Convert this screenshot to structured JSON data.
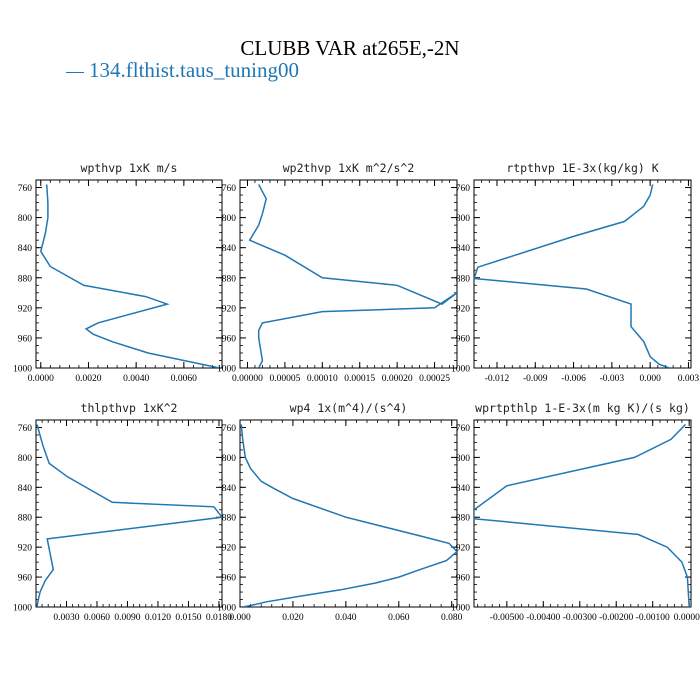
{
  "figure_title": "CLUBB VAR at265E,-2N",
  "legend_label": "134.flthist.taus_tuning00",
  "colors": {
    "series": "#1f77b4",
    "axes": "#000000"
  },
  "chart_data": [
    {
      "type": "line",
      "title": "wpthvp  1xK m/s",
      "xlim": [
        -0.0002,
        0.0076
      ],
      "ylim": [
        750,
        1000
      ],
      "x_ticks": [
        0.0,
        0.002,
        0.004,
        0.006
      ],
      "x_tick_labels": [
        "0.0000",
        "0.0020",
        "0.0040",
        "0.0060"
      ],
      "y_ticks": [
        760,
        800,
        840,
        880,
        920,
        960,
        1000
      ],
      "y_tick_labels": [
        "760",
        "800",
        "840",
        "880",
        "920",
        "960",
        "1000"
      ],
      "series": [
        {
          "x": [
            0.00025,
            0.0003,
            0.0003,
            0.0002,
            0.0,
            0.0004,
            0.0018,
            0.0044,
            0.0053,
            0.0024,
            0.0019,
            0.0022,
            0.003,
            0.0045,
            0.0075
          ],
          "y": [
            756,
            780,
            800,
            820,
            845,
            865,
            890,
            905,
            915,
            940,
            948,
            955,
            965,
            980,
            1000
          ]
        }
      ]
    },
    {
      "type": "line",
      "title": "wp2thvp  1xK m^2/s^2",
      "xlim": [
        -1e-05,
        0.00028
      ],
      "ylim": [
        750,
        1000
      ],
      "x_ticks": [
        0.0,
        5e-05,
        0.0001,
        0.00015,
        0.0002,
        0.00025
      ],
      "x_tick_labels": [
        "0.00000",
        "0.00005",
        "0.00010",
        "0.00015",
        "0.00020",
        "0.00025"
      ],
      "y_ticks": [
        760,
        800,
        840,
        880,
        920,
        960,
        1000
      ],
      "y_tick_labels": [
        "760",
        "800",
        "840",
        "880",
        "920",
        "960",
        "1000"
      ],
      "series": [
        {
          "x": [
            1.5e-05,
            2.5e-05,
            2e-05,
            1.5e-05,
            3e-06,
            5e-05,
            0.0001,
            0.0002,
            0.00026,
            0.00028,
            0.00025,
            0.0001,
            2e-05,
            1.5e-05,
            1.5e-05,
            2e-05,
            1.5e-05
          ],
          "y": [
            756,
            775,
            795,
            810,
            830,
            850,
            880,
            890,
            915,
            900,
            920,
            925,
            940,
            950,
            960,
            990,
            1000
          ]
        }
      ]
    },
    {
      "type": "line",
      "title": "rtpthvp  1E-3x(kg/kg) K",
      "xlim": [
        -0.0138,
        0.0032
      ],
      "ylim": [
        750,
        1000
      ],
      "x_ticks": [
        -0.012,
        -0.009,
        -0.006,
        -0.003,
        0.0,
        0.003
      ],
      "x_tick_labels": [
        "-0.012",
        "-0.009",
        "-0.006",
        "-0.003",
        "0.000",
        "0.003"
      ],
      "y_ticks": [
        760,
        800,
        840,
        880,
        920,
        960,
        1000
      ],
      "y_tick_labels": [
        "760",
        "800",
        "840",
        "880",
        "920",
        "960",
        "1000"
      ],
      "series": [
        {
          "x": [
            0.0002,
            0.0,
            -0.0005,
            -0.002,
            -0.006,
            -0.0135,
            -0.0138,
            -0.005,
            -0.0015,
            -0.0015,
            -0.0015,
            -0.0005,
            0.0,
            0.0007,
            0.0015
          ],
          "y": [
            756,
            770,
            785,
            805,
            825,
            866,
            881,
            895,
            915,
            930,
            945,
            965,
            985,
            995,
            1000
          ]
        }
      ]
    },
    {
      "type": "line",
      "title": "thlpthvp  1xK^2",
      "xlim": [
        0.0,
        0.0183
      ],
      "ylim": [
        750,
        1000
      ],
      "x_ticks": [
        0.003,
        0.006,
        0.009,
        0.012,
        0.015,
        0.018
      ],
      "x_tick_labels": [
        "0.0030",
        "0.0060",
        "0.0090",
        "0.0120",
        "0.0150",
        "0.0180"
      ],
      "y_ticks": [
        760,
        800,
        840,
        880,
        920,
        960,
        1000
      ],
      "y_tick_labels": [
        "760",
        "800",
        "840",
        "880",
        "920",
        "960",
        "1000"
      ],
      "series": [
        {
          "x": [
            0.0001,
            0.0007,
            0.0013,
            0.0031,
            0.0075,
            0.0175,
            0.0183,
            0.0011,
            0.0017,
            0.0009,
            0.0004,
            0.0002,
            0.0001
          ],
          "y": [
            756,
            785,
            808,
            826,
            860,
            866,
            880,
            909,
            950,
            965,
            980,
            992,
            1000
          ]
        }
      ]
    },
    {
      "type": "line",
      "title": "wp4  1x(m^4)/(s^4)",
      "xlim": [
        0.0,
        0.082
      ],
      "ylim": [
        750,
        1000
      ],
      "x_ticks": [
        0.0,
        0.02,
        0.04,
        0.06,
        0.08
      ],
      "x_tick_labels": [
        "0.000",
        "0.020",
        "0.040",
        "0.060",
        "0.080"
      ],
      "y_ticks": [
        760,
        800,
        840,
        880,
        920,
        960,
        1000
      ],
      "y_tick_labels": [
        "760",
        "800",
        "840",
        "880",
        "920",
        "960",
        "1000"
      ],
      "series": [
        {
          "x": [
            0.0005,
            0.001,
            0.002,
            0.004,
            0.008,
            0.012,
            0.02,
            0.04,
            0.068,
            0.079,
            0.082,
            0.078,
            0.068,
            0.06,
            0.051,
            0.038,
            0.022,
            0.01,
            0.004,
            0.001
          ],
          "y": [
            756,
            775,
            800,
            815,
            832,
            840,
            855,
            880,
            905,
            915,
            926,
            938,
            950,
            960,
            968,
            977,
            986,
            993,
            998,
            1000
          ]
        }
      ]
    },
    {
      "type": "line",
      "title": "wprtpthlp  1-E-3x(m kg K)/(s kg)",
      "xlim": [
        -0.0059,
        5e-05
      ],
      "ylim": [
        750,
        1000
      ],
      "x_ticks": [
        -0.005,
        -0.004,
        -0.003,
        -0.002,
        -0.001,
        0.0
      ],
      "x_tick_labels": [
        "-0.00500",
        "-0.00400",
        "-0.00300",
        "-0.00200",
        "-0.00100",
        "0.00000"
      ],
      "y_ticks": [
        760,
        800,
        840,
        880,
        920,
        960,
        1000
      ],
      "y_tick_labels": [
        "760",
        "800",
        "840",
        "880",
        "920",
        "960",
        "1000"
      ],
      "series": [
        {
          "x": [
            -0.0001,
            -0.0005,
            -0.0015,
            -0.005,
            -0.0059,
            -0.0059,
            -0.0014,
            -0.0006,
            -0.0002,
            -5e-05,
            0.0
          ],
          "y": [
            756,
            776,
            800,
            838,
            870,
            882,
            903,
            920,
            940,
            960,
            1000
          ]
        }
      ]
    }
  ]
}
